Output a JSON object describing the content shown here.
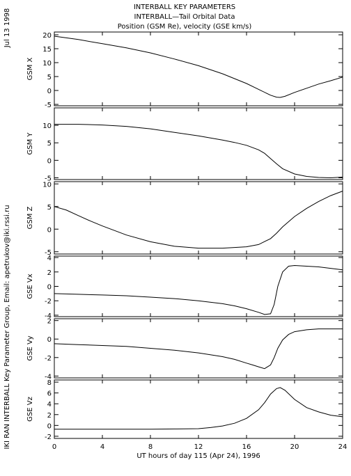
{
  "header": {
    "title_line1": "INTERBALL KEY PARAMETERS",
    "title_line2": "INTERBALL—Tail Orbital Data",
    "title_line3": "Position (GSM Re), velocity (GSE km/s)"
  },
  "side": {
    "date": "Jul 13 1998",
    "credit": "IKI RAN INTERBALL Key Parameter Group, Email: apetrukov@iki.rssi.ru"
  },
  "chart_data": {
    "type": "line",
    "xlabel": "UT hours of day 115 (Apr 24), 1996",
    "xlim": [
      0,
      24
    ],
    "xticks": [
      0,
      4,
      8,
      12,
      16,
      20,
      24
    ],
    "panels": [
      {
        "ylabel": "GSM X",
        "ylim": [
          -5.5,
          21
        ],
        "yticks": [
          -5,
          0,
          5,
          10,
          15,
          20
        ],
        "x": [
          0,
          2,
          4,
          6,
          8,
          10,
          12,
          14,
          16,
          17,
          18,
          18.5,
          18.8,
          19.2,
          20,
          21,
          22,
          23,
          24
        ],
        "y": [
          19.5,
          18.3,
          16.8,
          15.3,
          13.5,
          11.3,
          8.9,
          6.0,
          2.5,
          0.4,
          -1.7,
          -2.4,
          -2.5,
          -2.1,
          -0.7,
          0.8,
          2.3,
          3.5,
          4.8
        ]
      },
      {
        "ylabel": "GSM Y",
        "ylim": [
          -5.5,
          15
        ],
        "yticks": [
          -5,
          0,
          5,
          10
        ],
        "x": [
          0,
          2,
          4,
          6,
          8,
          10,
          12,
          14,
          15,
          16,
          17,
          17.5,
          18,
          18.5,
          19,
          20,
          21,
          22,
          23,
          24
        ],
        "y": [
          10.3,
          10.3,
          10.1,
          9.7,
          9.0,
          8.0,
          7.0,
          5.8,
          5.1,
          4.3,
          3.0,
          2.0,
          0.5,
          -1.0,
          -2.4,
          -3.9,
          -4.6,
          -4.9,
          -5.0,
          -4.8
        ]
      },
      {
        "ylabel": "GSM Z",
        "ylim": [
          -5.5,
          10.5
        ],
        "yticks": [
          -5,
          0,
          5,
          10
        ],
        "x": [
          0,
          1,
          2,
          3,
          4,
          5,
          6,
          8,
          10,
          12,
          14,
          16,
          17,
          18,
          18.5,
          19,
          20,
          21,
          22,
          23,
          24
        ],
        "y": [
          5.0,
          4.2,
          3.0,
          1.8,
          0.7,
          -0.3,
          -1.3,
          -2.8,
          -3.8,
          -4.2,
          -4.2,
          -3.9,
          -3.4,
          -2.1,
          -0.9,
          0.5,
          2.8,
          4.6,
          6.1,
          7.4,
          8.4
        ]
      },
      {
        "ylabel": "GSE Vx",
        "ylim": [
          -4.2,
          4.2
        ],
        "yticks": [
          -4,
          -2,
          0,
          2,
          4
        ],
        "x": [
          0,
          2,
          4,
          6,
          8,
          10,
          12,
          14,
          15,
          16,
          17,
          17.5,
          18,
          18.3,
          18.6,
          19,
          19.5,
          20,
          21,
          22,
          23,
          24
        ],
        "y": [
          -1.0,
          -1.1,
          -1.2,
          -1.3,
          -1.5,
          -1.7,
          -2.0,
          -2.4,
          -2.7,
          -3.1,
          -3.6,
          -3.9,
          -3.8,
          -2.5,
          0.0,
          2.0,
          2.8,
          2.9,
          2.8,
          2.7,
          2.5,
          2.3
        ]
      },
      {
        "ylabel": "GSE Vy",
        "ylim": [
          -4.2,
          2.2
        ],
        "yticks": [
          -4,
          -2,
          0,
          2
        ],
        "x": [
          0,
          2,
          4,
          6,
          8,
          10,
          12,
          14,
          15,
          16,
          16.5,
          17,
          17.5,
          18,
          18.3,
          18.6,
          19,
          19.5,
          20,
          21,
          22,
          23,
          24
        ],
        "y": [
          -0.5,
          -0.6,
          -0.7,
          -0.8,
          -1.0,
          -1.2,
          -1.5,
          -1.9,
          -2.2,
          -2.6,
          -2.8,
          -3.0,
          -3.2,
          -2.8,
          -2.0,
          -1.0,
          -0.1,
          0.5,
          0.8,
          1.0,
          1.1,
          1.1,
          1.1
        ]
      },
      {
        "ylabel": "GSE Vz",
        "ylim": [
          -2.4,
          8.4
        ],
        "yticks": [
          -2,
          0,
          2,
          4,
          6,
          8
        ],
        "x": [
          0,
          2,
          4,
          6,
          8,
          10,
          12,
          13,
          14,
          15,
          16,
          17,
          17.5,
          18,
          18.5,
          18.8,
          19.2,
          20,
          21,
          22,
          23,
          24
        ],
        "y": [
          -0.7,
          -0.7,
          -0.7,
          -0.7,
          -0.7,
          -0.65,
          -0.6,
          -0.4,
          -0.1,
          0.4,
          1.3,
          2.9,
          4.2,
          5.8,
          6.8,
          7.0,
          6.5,
          4.8,
          3.3,
          2.5,
          1.9,
          1.6
        ]
      }
    ]
  }
}
